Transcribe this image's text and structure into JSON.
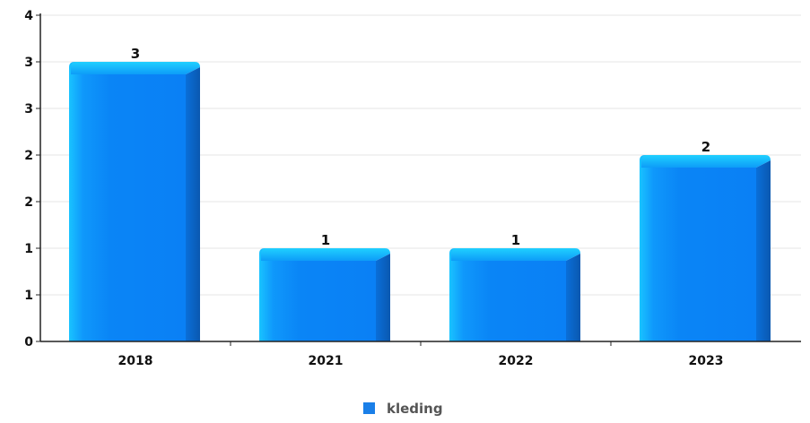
{
  "chart_data": {
    "type": "bar",
    "categories": [
      "2018",
      "2021",
      "2022",
      "2023"
    ],
    "series": [
      {
        "name": "kleding",
        "values": [
          3,
          1,
          1,
          2
        ]
      }
    ],
    "data_labels": [
      "3",
      "1",
      "1",
      "2"
    ],
    "y_tick_labels": [
      "0",
      "1",
      "1",
      "2",
      "2",
      "3",
      "3",
      "4"
    ],
    "ylim": [
      0,
      3.5
    ],
    "grid": true,
    "legend": "bottom-center",
    "colors": {
      "bar_top": "#19c3ff",
      "bar_main": "#0a80f5",
      "bar_side": "#0a62c2",
      "legend_swatch": "#1a7fe8",
      "grid": "#e6e6e6",
      "axis": "#222222"
    }
  }
}
